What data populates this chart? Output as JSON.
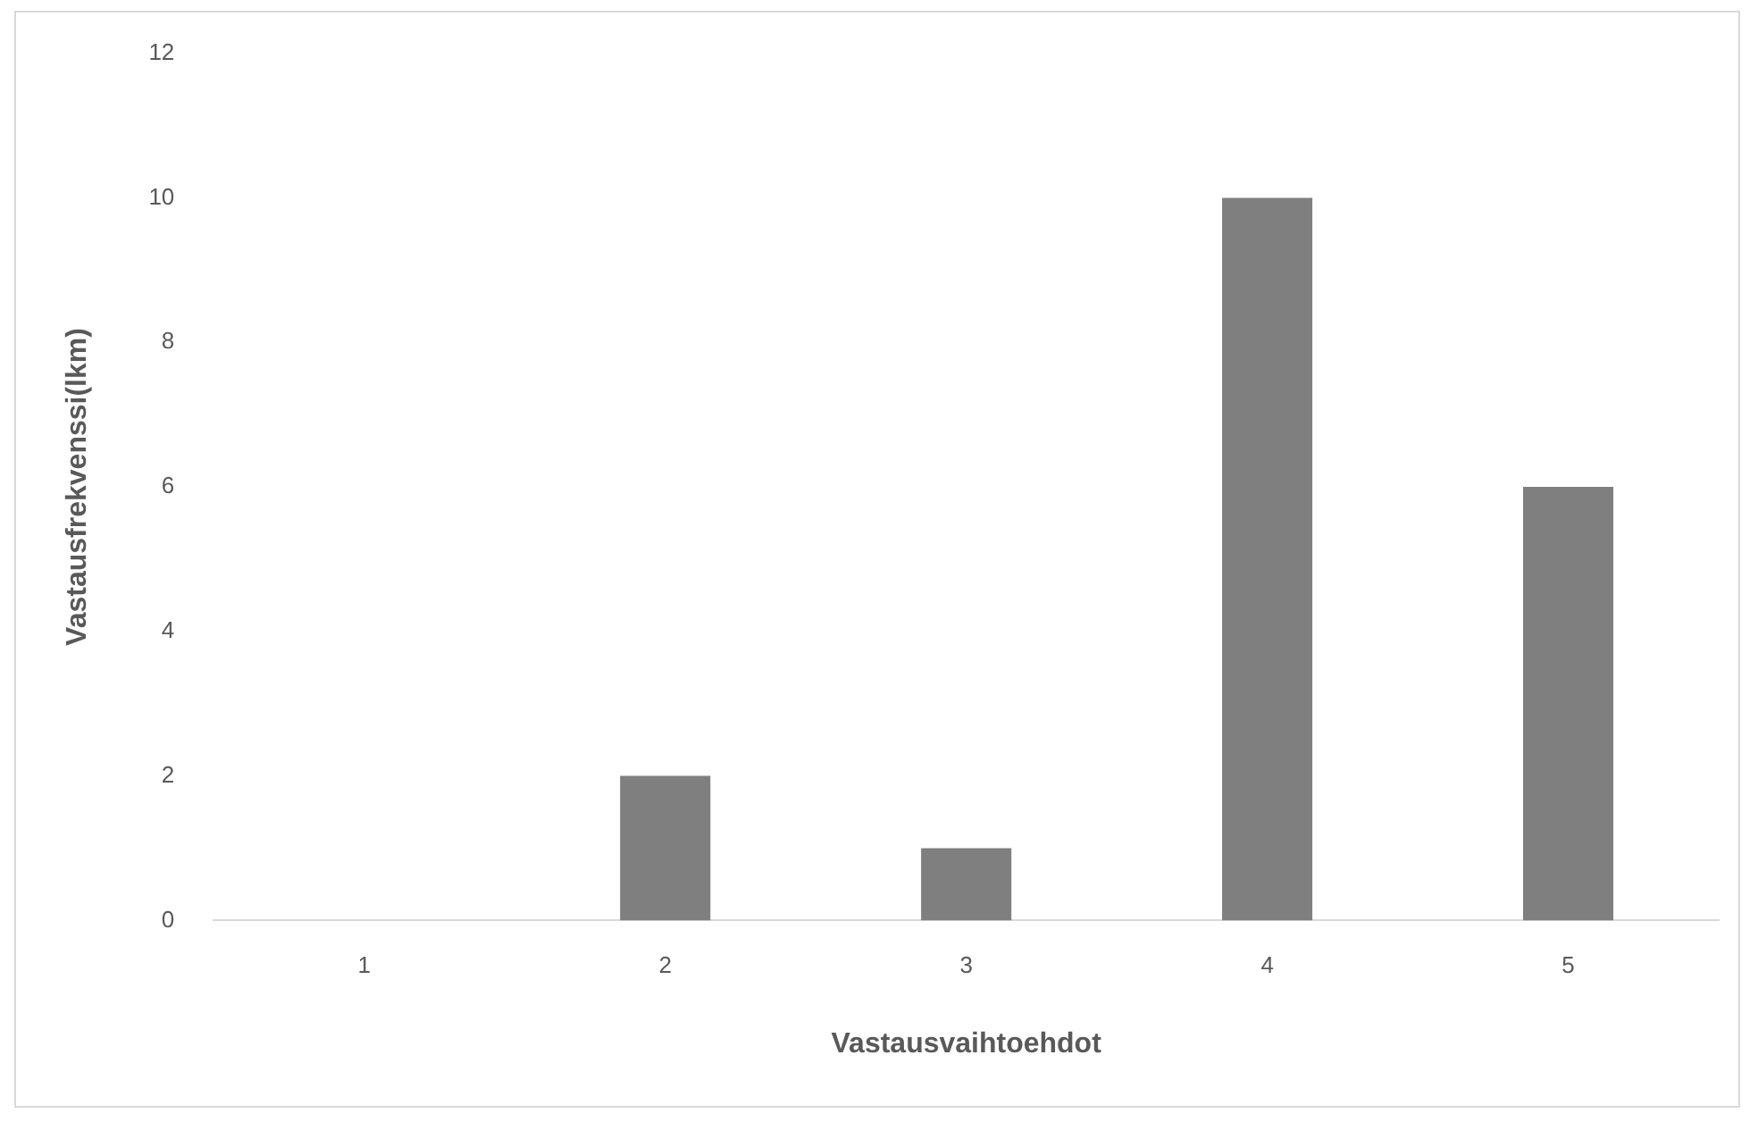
{
  "chart_data": {
    "type": "bar",
    "xlabel": "Vastausvaihtoehdot",
    "ylabel": "Vastausfrekvenssi(lkm)",
    "categories": [
      "1",
      "2",
      "3",
      "4",
      "5"
    ],
    "values": [
      0,
      2,
      1,
      10,
      6
    ],
    "color": "#7f7f7f",
    "ylim": [
      0,
      12
    ],
    "yticks": [
      0,
      2,
      4,
      6,
      8,
      10,
      12
    ],
    "grid": false,
    "legend": false
  }
}
